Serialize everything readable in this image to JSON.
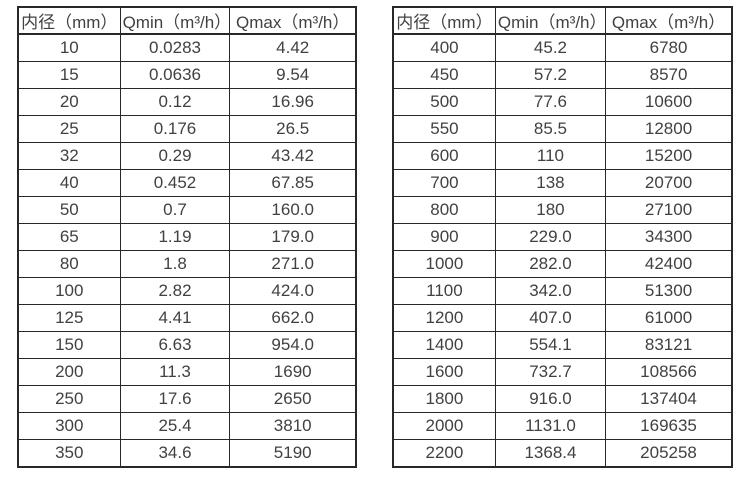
{
  "page": {
    "background_color": "#ffffff",
    "border_color": "#282828",
    "text_color": "#414141"
  },
  "tables": [
    {
      "name": "small-diameter-flow-rates",
      "headers": [
        "内径（mm）",
        "Qmin（m³/h）",
        "Qmax（m³/h）"
      ],
      "rows": [
        [
          "10",
          "0.0283",
          "4.42"
        ],
        [
          "15",
          "0.0636",
          "9.54"
        ],
        [
          "20",
          "0.12",
          "16.96"
        ],
        [
          "25",
          "0.176",
          "26.5"
        ],
        [
          "32",
          "0.29",
          "43.42"
        ],
        [
          "40",
          "0.452",
          "67.85"
        ],
        [
          "50",
          "0.7",
          "160.0"
        ],
        [
          "65",
          "1.19",
          "179.0"
        ],
        [
          "80",
          "1.8",
          "271.0"
        ],
        [
          "100",
          "2.82",
          "424.0"
        ],
        [
          "125",
          "4.41",
          "662.0"
        ],
        [
          "150",
          "6.63",
          "954.0"
        ],
        [
          "200",
          "11.3",
          "1690"
        ],
        [
          "250",
          "17.6",
          "2650"
        ],
        [
          "300",
          "25.4",
          "3810"
        ],
        [
          "350",
          "34.6",
          "5190"
        ]
      ]
    },
    {
      "name": "large-diameter-flow-rates",
      "headers": [
        "内径（mm）",
        "Qmin（m³/h）",
        "Qmax（m³/h）"
      ],
      "rows": [
        [
          "400",
          "45.2",
          "6780"
        ],
        [
          "450",
          "57.2",
          "8570"
        ],
        [
          "500",
          "77.6",
          "10600"
        ],
        [
          "550",
          "85.5",
          "12800"
        ],
        [
          "600",
          "110",
          "15200"
        ],
        [
          "700",
          "138",
          "20700"
        ],
        [
          "800",
          "180",
          "27100"
        ],
        [
          "900",
          "229.0",
          "34300"
        ],
        [
          "1000",
          "282.0",
          "42400"
        ],
        [
          "1100",
          "342.0",
          "51300"
        ],
        [
          "1200",
          "407.0",
          "61000"
        ],
        [
          "1400",
          "554.1",
          "83121"
        ],
        [
          "1600",
          "732.7",
          "108566"
        ],
        [
          "1800",
          "916.0",
          "137404"
        ],
        [
          "2000",
          "1131.0",
          "169635"
        ],
        [
          "2200",
          "1368.4",
          "205258"
        ]
      ]
    }
  ]
}
